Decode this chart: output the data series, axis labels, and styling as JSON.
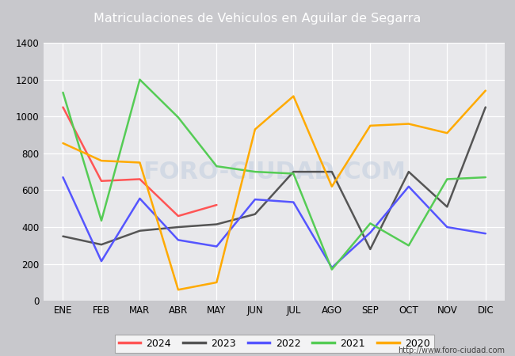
{
  "title": "Matriculaciones de Vehiculos en Aguilar de Segarra",
  "months": [
    "ENE",
    "FEB",
    "MAR",
    "ABR",
    "MAY",
    "JUN",
    "JUL",
    "AGO",
    "SEP",
    "OCT",
    "NOV",
    "DIC"
  ],
  "series": {
    "2024": {
      "color": "#ff5555",
      "values": [
        1050,
        650,
        660,
        460,
        520,
        null,
        null,
        null,
        null,
        null,
        null,
        null
      ]
    },
    "2023": {
      "color": "#555555",
      "values": [
        350,
        305,
        380,
        400,
        415,
        470,
        700,
        700,
        280,
        700,
        510,
        1050
      ]
    },
    "2022": {
      "color": "#5555ff",
      "values": [
        670,
        215,
        555,
        330,
        295,
        550,
        535,
        180,
        370,
        620,
        400,
        365
      ]
    },
    "2021": {
      "color": "#55cc55",
      "values": [
        1130,
        435,
        1200,
        995,
        730,
        700,
        690,
        170,
        420,
        300,
        660,
        670
      ]
    },
    "2020": {
      "color": "#ffaa00",
      "values": [
        855,
        760,
        750,
        60,
        100,
        930,
        1110,
        620,
        950,
        960,
        910,
        1140
      ]
    }
  },
  "ylim": [
    0,
    1400
  ],
  "yticks": [
    0,
    200,
    400,
    600,
    800,
    1000,
    1200,
    1400
  ],
  "legend_order": [
    "2024",
    "2023",
    "2022",
    "2021",
    "2020"
  ],
  "title_bgcolor": "#4e6faf",
  "title_color": "white",
  "plot_bgcolor": "#e8e8eb",
  "outer_bgcolor": "#c8c8cc",
  "grid_color": "white",
  "url_text": "http://www.foro-ciudad.com",
  "linewidth": 1.8,
  "title_fontsize": 11.5
}
